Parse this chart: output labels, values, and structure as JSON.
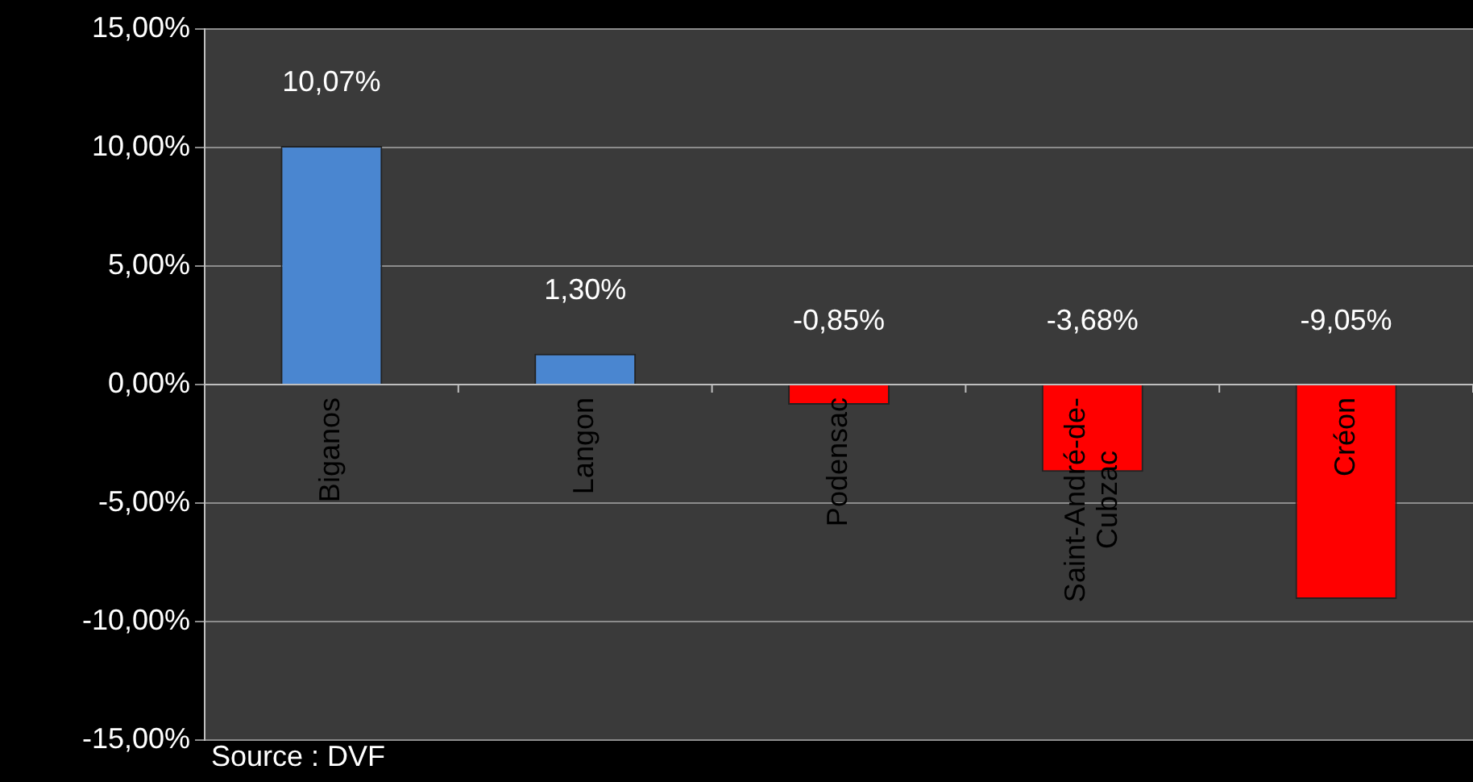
{
  "chart_data": {
    "type": "bar",
    "categories": [
      "Biganos",
      "Langon",
      "Podensac",
      "Saint-André-de-Cubzac",
      "Créon"
    ],
    "values": [
      10.07,
      1.3,
      -0.85,
      -3.68,
      -9.05
    ],
    "colors": [
      "#4a86d0",
      "#4a86d0",
      "#ff0000",
      "#ff0000",
      "#ff0000"
    ],
    "value_labels": [
      "10,07%",
      "1,30%",
      "-0,85%",
      "-3,68%",
      "-9,05%"
    ],
    "ylim": [
      -15,
      15
    ],
    "yticks": [
      {
        "value": -15,
        "label": "-15,00%"
      },
      {
        "value": -10,
        "label": "-10,00%"
      },
      {
        "value": -5,
        "label": "-5,00%"
      },
      {
        "value": 0,
        "label": "0,00%"
      },
      {
        "value": 5,
        "label": "5,00%"
      },
      {
        "value": 10,
        "label": "10,00%"
      },
      {
        "value": 15,
        "label": "15,00%"
      }
    ],
    "grid": "y",
    "annotations": [
      "Source : DVF"
    ]
  }
}
